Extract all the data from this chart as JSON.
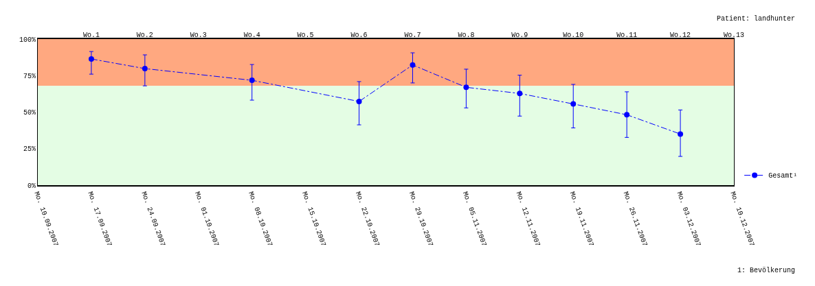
{
  "chart_data": {
    "type": "line",
    "title": "Patient: landhunter",
    "x": [
      "2007-09-17",
      "2007-09-24",
      "2007-10-08",
      "2007-10-22",
      "2007-10-29",
      "2007-11-05",
      "2007-11-12",
      "2007-11-19",
      "2007-11-26",
      "2007-12-03"
    ],
    "series": [
      {
        "name": "Gesamt¹",
        "color": "#0000ff",
        "values": [
          86.4,
          79.8,
          71.8,
          57.3,
          82.3,
          67,
          62.8,
          55.6,
          48.2,
          35
        ],
        "errors": [
          [
            76,
            91.5
          ],
          [
            68,
            89.2
          ],
          [
            58.2,
            82.6
          ],
          [
            41.3,
            70.9
          ],
          [
            70,
            90.6
          ],
          [
            52.9,
            79.4
          ],
          [
            47.3,
            75.3
          ],
          [
            39.2,
            69
          ],
          [
            32.7,
            63.9
          ],
          [
            19.7,
            51.5
          ]
        ]
      }
    ],
    "xlim": [
      "2007-09-10",
      "2007-12-10"
    ],
    "xticks": [
      {
        "value": "2007-09-10",
        "label": "Mo. 10.09.2007"
      },
      {
        "value": "2007-09-17",
        "label": "Mo. 17.09.2007"
      },
      {
        "value": "2007-09-24",
        "label": "Mo. 24.09.2007"
      },
      {
        "value": "2007-10-01",
        "label": "Mo. 01.10.2007"
      },
      {
        "value": "2007-10-08",
        "label": "Mo. 08.10.2007"
      },
      {
        "value": "2007-10-15",
        "label": "Mo. 15.10.2007"
      },
      {
        "value": "2007-10-22",
        "label": "Mo. 22.10.2007"
      },
      {
        "value": "2007-10-29",
        "label": "Mo. 29.10.2007"
      },
      {
        "value": "2007-11-05",
        "label": "Mo. 05.11.2007"
      },
      {
        "value": "2007-11-12",
        "label": "Mo. 12.11.2007"
      },
      {
        "value": "2007-11-19",
        "label": "Mo. 19.11.2007"
      },
      {
        "value": "2007-11-26",
        "label": "Mo. 26.11.2007"
      },
      {
        "value": "2007-12-03",
        "label": "Mo. 03.12.2007"
      },
      {
        "value": "2007-12-10",
        "label": "Mo. 10.12.2007"
      }
    ],
    "x2lim": [
      "2007-09-10",
      "2007-12-10"
    ],
    "x2ticks": [
      {
        "value": "2007-09-17",
        "label": "Wo.1"
      },
      {
        "value": "2007-09-24",
        "label": "Wo.2"
      },
      {
        "value": "2007-10-01",
        "label": "Wo.3"
      },
      {
        "value": "2007-10-08",
        "label": "Wo.4"
      },
      {
        "value": "2007-10-15",
        "label": "Wo.5"
      },
      {
        "value": "2007-10-22",
        "label": "Wo.6"
      },
      {
        "value": "2007-10-29",
        "label": "Wo.7"
      },
      {
        "value": "2007-11-05",
        "label": "Wo.8"
      },
      {
        "value": "2007-11-12",
        "label": "Wo.9"
      },
      {
        "value": "2007-11-19",
        "label": "Wo.10"
      },
      {
        "value": "2007-11-26",
        "label": "Wo.11"
      },
      {
        "value": "2007-12-03",
        "label": "Wo.12"
      },
      {
        "value": "2007-12-10",
        "label": "Wo.13"
      }
    ],
    "ylim": [
      0,
      100
    ],
    "yticks": [
      {
        "value": 0,
        "label": "0%"
      },
      {
        "value": 25,
        "label": "25%"
      },
      {
        "value": 50,
        "label": "50%"
      },
      {
        "value": 75,
        "label": "75%"
      },
      {
        "value": 100,
        "label": "100%"
      }
    ],
    "bands": [
      {
        "axis": "y",
        "from": 68,
        "to": 100,
        "color": "#ffa880"
      },
      {
        "axis": "y",
        "from": 0,
        "to": 68,
        "color": "#e4fde4"
      }
    ],
    "annotations": [
      "1: Bevölkerung"
    ],
    "marker": "circle",
    "line_style": "dashed",
    "grid": false,
    "legend": "bottom right"
  }
}
